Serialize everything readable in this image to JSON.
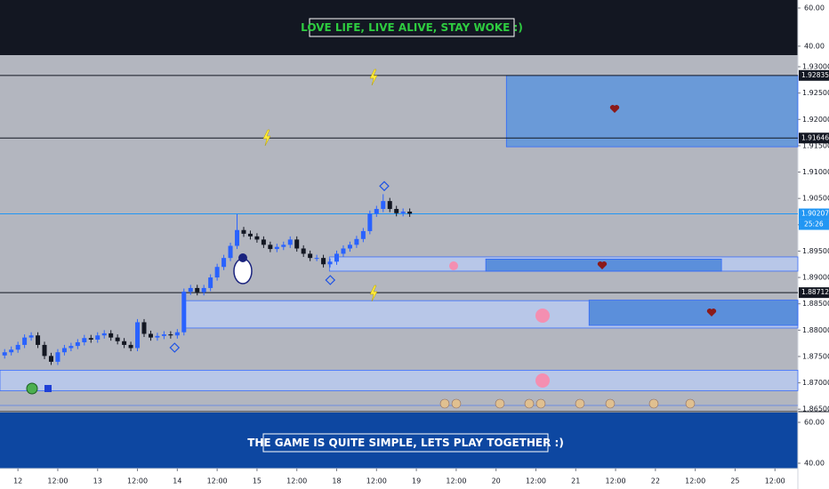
{
  "chart_data": {
    "type": "candlestick",
    "x": [
      -4,
      -2,
      0,
      2,
      4,
      6,
      8,
      10,
      12,
      14,
      16,
      18,
      20,
      22,
      24,
      26,
      28,
      30,
      32,
      34,
      36,
      38,
      40,
      42,
      44,
      46,
      48,
      50,
      52,
      54,
      56,
      58,
      60,
      62,
      64,
      66,
      68,
      70,
      72,
      74,
      76,
      78,
      80,
      82,
      84,
      86,
      88,
      90,
      92,
      94,
      96,
      98,
      100,
      102,
      104,
      106,
      108,
      110,
      112,
      114,
      116,
      118
    ],
    "open": [
      1.8752,
      1.8758,
      1.8763,
      1.8772,
      1.8786,
      1.879,
      1.8772,
      1.8751,
      1.874,
      1.8758,
      1.8766,
      1.877,
      1.8777,
      1.8785,
      1.8782,
      1.879,
      1.8794,
      1.8786,
      1.8779,
      1.8772,
      1.8766,
      1.8815,
      1.8793,
      1.8786,
      1.8789,
      1.8792,
      1.879,
      1.8796,
      1.8873,
      1.888,
      1.8872,
      1.888,
      1.89,
      1.892,
      1.8937,
      1.896,
      1.899,
      1.8983,
      1.8978,
      1.8972,
      1.8962,
      1.8954,
      1.8958,
      1.8962,
      1.8972,
      1.8955,
      1.8945,
      1.8937,
      1.8937,
      1.8925,
      1.893,
      1.8945,
      1.8955,
      1.8962,
      1.8973,
      1.8988,
      1.9021,
      1.903,
      1.9045,
      1.903,
      1.9022,
      1.9025
    ],
    "high": [
      1.8764,
      1.8769,
      1.8778,
      1.8792,
      1.8796,
      1.8796,
      1.8778,
      1.8757,
      1.8764,
      1.8772,
      1.8776,
      1.8783,
      1.8791,
      1.8791,
      1.8796,
      1.88,
      1.88,
      1.8792,
      1.8785,
      1.8778,
      1.8821,
      1.8821,
      1.8799,
      1.8795,
      1.8798,
      1.8798,
      1.8802,
      1.8879,
      1.8886,
      1.8886,
      1.8886,
      1.8906,
      1.8926,
      1.8943,
      1.8966,
      1.902,
      1.8996,
      1.8989,
      1.8984,
      1.8978,
      1.8968,
      1.8964,
      1.8968,
      1.8978,
      1.8978,
      1.8961,
      1.8951,
      1.8943,
      1.8943,
      1.8936,
      1.8951,
      1.8961,
      1.8968,
      1.8979,
      1.8994,
      1.9027,
      1.9036,
      1.9058,
      1.9051,
      1.9036,
      1.9031,
      1.9031
    ],
    "low": [
      1.8746,
      1.8752,
      1.8757,
      1.8766,
      1.878,
      1.8766,
      1.8745,
      1.8734,
      1.8734,
      1.8752,
      1.876,
      1.8764,
      1.8771,
      1.8776,
      1.8776,
      1.8784,
      1.878,
      1.8773,
      1.8766,
      1.876,
      1.876,
      1.8787,
      1.878,
      1.878,
      1.8783,
      1.8784,
      1.8784,
      1.879,
      1.8867,
      1.8866,
      1.8866,
      1.8874,
      1.8894,
      1.8914,
      1.8931,
      1.8954,
      1.8977,
      1.8972,
      1.8966,
      1.8956,
      1.8948,
      1.8948,
      1.8952,
      1.8956,
      1.8949,
      1.8939,
      1.8931,
      1.8931,
      1.8919,
      1.8919,
      1.8924,
      1.8939,
      1.8949,
      1.8956,
      1.8967,
      1.8982,
      1.9015,
      1.9024,
      1.9024,
      1.9016,
      1.9016,
      1.9015
    ],
    "close": [
      1.8758,
      1.8763,
      1.8772,
      1.8786,
      1.879,
      1.8772,
      1.8751,
      1.874,
      1.8758,
      1.8766,
      1.877,
      1.8777,
      1.8785,
      1.8782,
      1.879,
      1.8794,
      1.8786,
      1.8779,
      1.8772,
      1.8766,
      1.8815,
      1.8793,
      1.8786,
      1.8789,
      1.8792,
      1.879,
      1.8796,
      1.8873,
      1.888,
      1.8872,
      1.888,
      1.89,
      1.892,
      1.8937,
      1.896,
      1.899,
      1.8983,
      1.8978,
      1.8972,
      1.8962,
      1.8954,
      1.8958,
      1.8962,
      1.8972,
      1.8955,
      1.8945,
      1.8937,
      1.8937,
      1.8925,
      1.893,
      1.8945,
      1.8955,
      1.8962,
      1.8973,
      1.8988,
      1.9021,
      1.903,
      1.9045,
      1.903,
      1.9022,
      1.9025,
      1.9021
    ],
    "up_color": "#2962ff",
    "down_color": "#131722",
    "xlim": [
      -5.4,
      234.9
    ],
    "xticks": [
      {
        "value": 0,
        "label": "12"
      },
      {
        "value": 12,
        "label": "12:00"
      },
      {
        "value": 24,
        "label": "13"
      },
      {
        "value": 36,
        "label": "12:00"
      },
      {
        "value": 48,
        "label": "14"
      },
      {
        "value": 60,
        "label": "12:00"
      },
      {
        "value": 72,
        "label": "15"
      },
      {
        "value": 84,
        "label": "12:00"
      },
      {
        "value": 96,
        "label": "18"
      },
      {
        "value": 108,
        "label": "12:00"
      },
      {
        "value": 120,
        "label": "19"
      },
      {
        "value": 132,
        "label": "12:00"
      },
      {
        "value": 144,
        "label": "20"
      },
      {
        "value": 156,
        "label": "12:00"
      },
      {
        "value": 168,
        "label": "21"
      },
      {
        "value": 180,
        "label": "12:00"
      },
      {
        "value": 192,
        "label": "22"
      },
      {
        "value": 204,
        "label": "12:00"
      },
      {
        "value": 216,
        "label": "25"
      },
      {
        "value": 228,
        "label": "12:00"
      }
    ],
    "ylim": [
      1.8647,
      1.9322
    ],
    "yticks": [
      {
        "value": 1.93,
        "label": "1.93000"
      },
      {
        "value": 1.925,
        "label": "1.92500"
      },
      {
        "value": 1.92,
        "label": "1.92000"
      },
      {
        "value": 1.915,
        "label": "1.91500"
      },
      {
        "value": 1.91,
        "label": "1.91000"
      },
      {
        "value": 1.905,
        "label": "1.90500"
      },
      {
        "value": 1.9,
        "label": "1.90000"
      },
      {
        "value": 1.895,
        "label": "1.89500"
      },
      {
        "value": 1.89,
        "label": "1.89000"
      },
      {
        "value": 1.885,
        "label": "1.88500"
      },
      {
        "value": 1.88,
        "label": "1.88000"
      },
      {
        "value": 1.875,
        "label": "1.87500"
      },
      {
        "value": 1.87,
        "label": "1.87000"
      },
      {
        "value": 1.865,
        "label": "1.86500"
      }
    ],
    "levels": [
      {
        "value": 1.92835,
        "color": "#131722"
      },
      {
        "value": 1.91646,
        "color": "#131722"
      },
      {
        "value": 1.88712,
        "color": "#131722"
      },
      {
        "value": 1.90207,
        "color": "#2196f3"
      }
    ],
    "countdown": "25:26",
    "zones": [
      {
        "x": [
          147.1,
          234.9
        ],
        "y": [
          1.92835,
          1.9148
        ],
        "color": "#6a9ad8"
      },
      {
        "x": [
          93.8,
          234.9
        ],
        "y": [
          1.8939,
          1.8912
        ],
        "color": "#b8c7e8"
      },
      {
        "x": [
          140.9,
          211.9
        ],
        "y": [
          1.8935,
          1.8912
        ],
        "color": "#5b8fdb"
      },
      {
        "x": [
          49.6,
          234.9
        ],
        "y": [
          1.8856,
          1.8804
        ],
        "color": "#b8c7e8"
      },
      {
        "x": [
          172,
          234.9
        ],
        "y": [
          1.8857,
          1.8809
        ],
        "color": "#5b8fdb"
      },
      {
        "x": [
          -5.4,
          234.9
        ],
        "y": [
          1.8724,
          1.8685
        ],
        "color": "#b8c7e8"
      }
    ]
  },
  "top_panel": {
    "banner": "LOVE LIFE, LIVE ALIVE, STAY WOKE :)",
    "ylim": [
      35.3,
      64.2
    ],
    "yticks": [
      {
        "value": 60,
        "label": "60.00"
      },
      {
        "value": 40,
        "label": "40.00"
      }
    ]
  },
  "bottom_panel": {
    "banner": "THE GAME IS QUITE SIMPLE, LETS PLAY TOGETHER :)",
    "ylim": [
      37.4,
      64.8
    ],
    "yticks": [
      {
        "value": 60,
        "label": "60.00"
      },
      {
        "value": 40,
        "label": "40.00"
      }
    ]
  }
}
